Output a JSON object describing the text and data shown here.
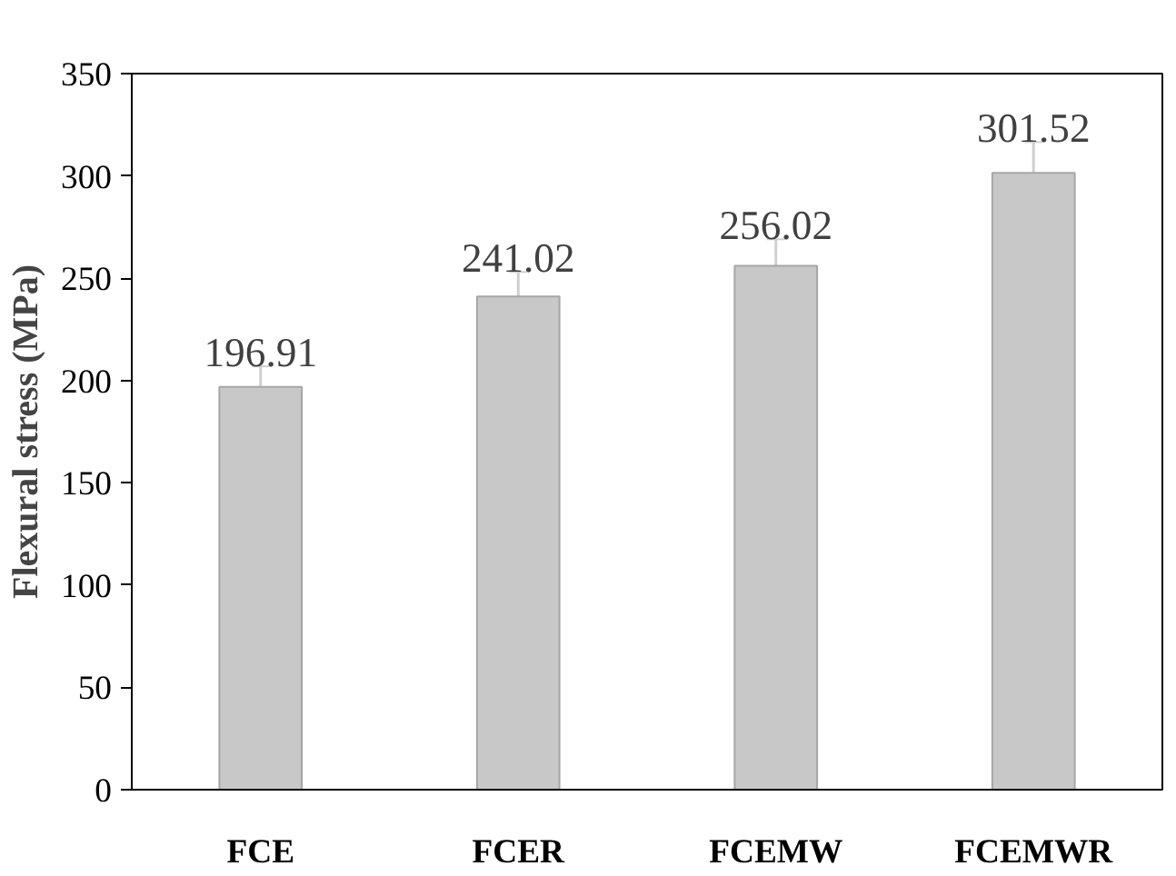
{
  "chart_data": {
    "type": "bar",
    "ylabel": "Flexural stress (MPa)",
    "categories": [
      "FCE",
      "FCER",
      "FCEMW",
      "FCEMWR"
    ],
    "values": [
      196.91,
      241.02,
      256.02,
      301.52
    ],
    "errors": [
      10,
      12,
      13,
      15
    ],
    "color": "#c8c8c8",
    "ylim": [
      0,
      350
    ],
    "yticks": [
      0,
      50,
      100,
      150,
      200,
      250,
      300,
      350
    ],
    "grid": false,
    "data_labels": true
  }
}
